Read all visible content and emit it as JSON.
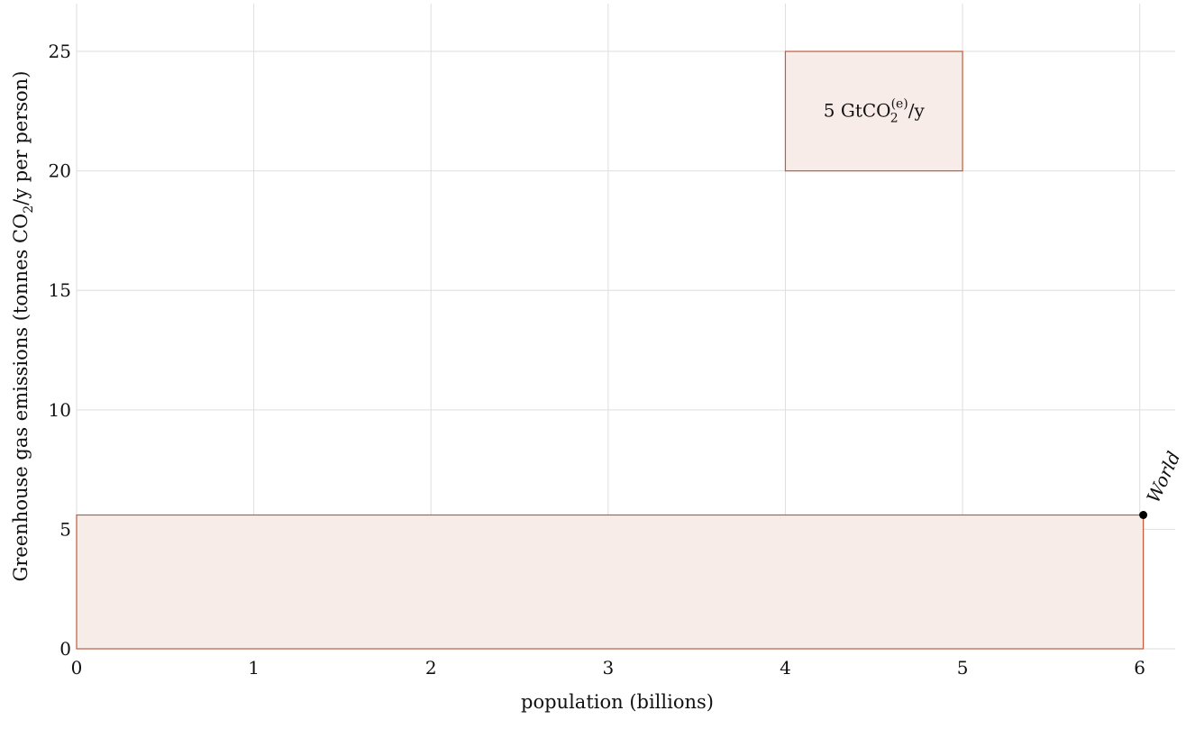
{
  "chart_data": {
    "type": "bar",
    "xlabel": "population (billions)",
    "ylabel_parts": [
      "Greenhouse gas emissions (tonnes CO",
      "2",
      "/y per person)"
    ],
    "xlim": [
      0,
      6.2
    ],
    "ylim": [
      0,
      27
    ],
    "x_ticks": [
      0,
      1,
      2,
      3,
      4,
      5,
      6
    ],
    "y_ticks": [
      0,
      5,
      10,
      15,
      20,
      25
    ],
    "grid": true,
    "regions": [
      {
        "name": "World",
        "x_start": 0,
        "width": 6.02,
        "value": 5.6
      }
    ],
    "points": [
      {
        "label": "World",
        "x": 6.02,
        "y": 5.6
      }
    ],
    "legend_box": {
      "x_start": 4,
      "x_end": 5,
      "y_start": 20,
      "y_end": 25,
      "label_parts": [
        "5 GtCO",
        "(e)",
        "2",
        "/y"
      ]
    },
    "colors": {
      "fill": "#f8ece9",
      "stroke": "#c25a3c",
      "grid": "#dedede",
      "point": "#000000"
    }
  }
}
